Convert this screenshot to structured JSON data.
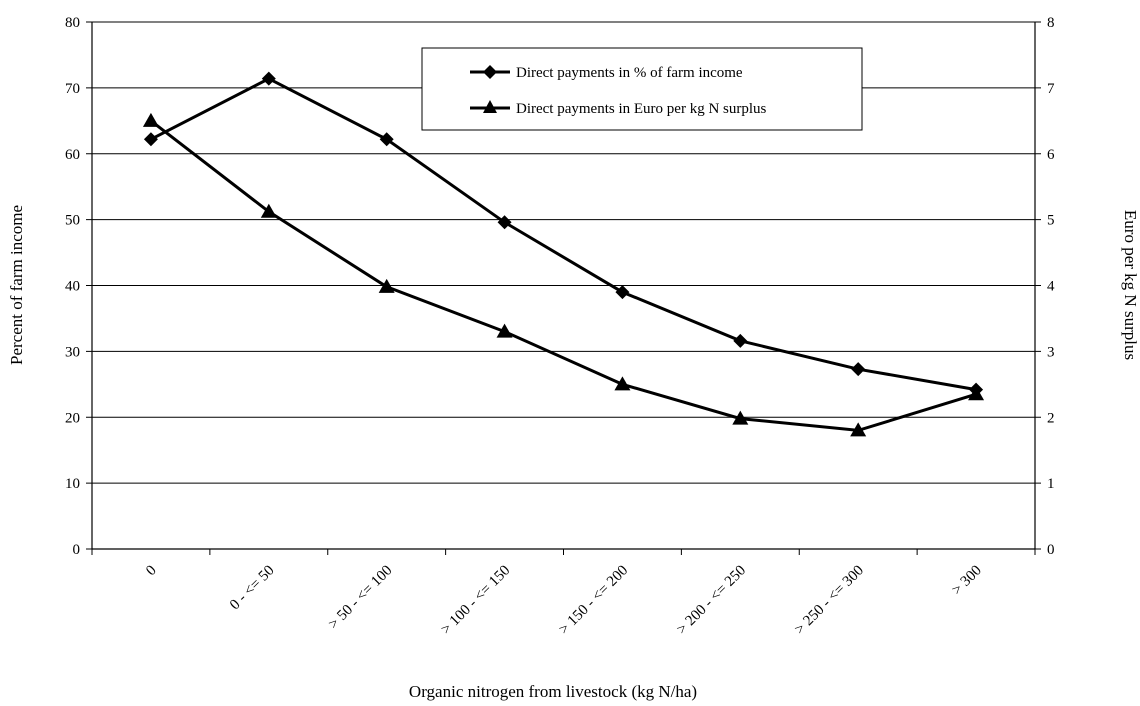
{
  "chart_data": {
    "type": "line",
    "categories": [
      "0",
      "0 - <= 50",
      "> 50 - <= 100",
      "> 100 - <= 150",
      "> 150 - <= 200",
      "> 200 - <= 250",
      "> 250 - <= 300",
      "> 300"
    ],
    "series": [
      {
        "name": "Direct payments in % of farm income",
        "axis": "left",
        "marker": "diamond",
        "values": [
          62.2,
          71.4,
          62.2,
          49.6,
          39.0,
          31.6,
          27.3,
          24.2
        ]
      },
      {
        "name": "Direct payments in Euro per kg N surplus",
        "axis": "right",
        "marker": "triangle",
        "values": [
          6.5,
          5.12,
          3.98,
          3.3,
          2.5,
          1.98,
          1.8,
          2.35
        ]
      }
    ],
    "xlabel": "Organic nitrogen from livestock (kg N/ha)",
    "ylabel": "Percent of farm income",
    "y2label": "Euro per kg N surplus",
    "ylim": [
      0,
      80
    ],
    "y2lim": [
      0,
      8
    ],
    "yticks": [
      "0",
      "10",
      "20",
      "30",
      "40",
      "50",
      "60",
      "70",
      "80"
    ],
    "y2ticks": [
      "0",
      "1",
      "2",
      "3",
      "4",
      "5",
      "6",
      "7",
      "8"
    ],
    "grid": true,
    "legend_position": "top-center"
  }
}
